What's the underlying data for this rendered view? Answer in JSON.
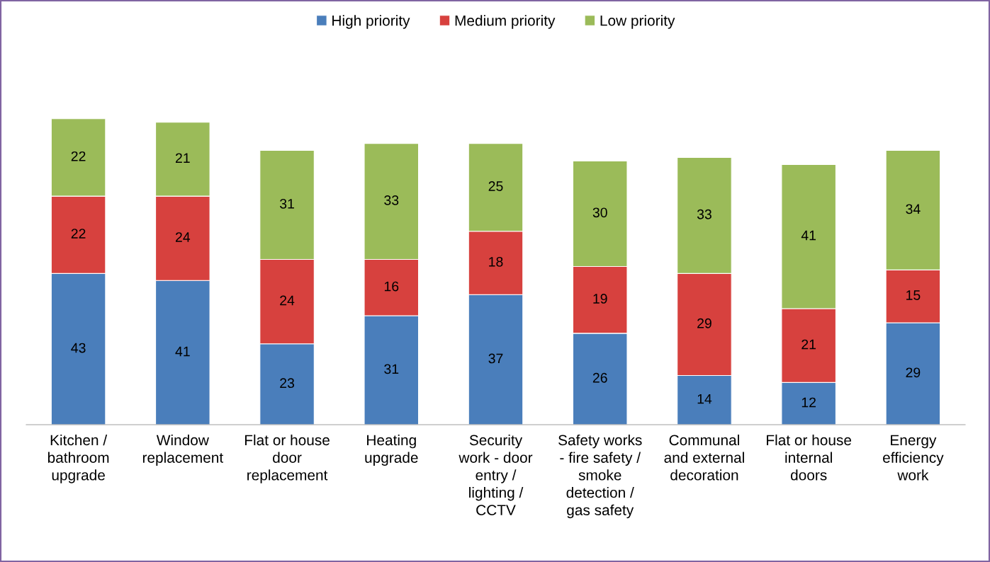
{
  "chart_data": {
    "type": "bar",
    "stacked": true,
    "data_labels": true,
    "legend": "top",
    "grid": false,
    "categories": [
      "Kitchen /\nbathroom\nupgrade",
      "Window\nreplacement",
      "Flat or house\ndoor\nreplacement",
      "Heating\nupgrade",
      "Security\nwork - door\nentry /\nlighting /\nCCTV",
      "Safety works\n- fire safety /\nsmoke\ndetection /\ngas safety",
      "Communal\nand external\ndecoration",
      "Flat or house\ninternal\ndoors",
      "Energy\nefficiency\nwork"
    ],
    "series": [
      {
        "name": "High priority",
        "color": "#4a7ebb",
        "values": [
          43,
          41,
          23,
          31,
          37,
          26,
          14,
          12,
          29
        ]
      },
      {
        "name": "Medium priority",
        "color": "#d7413e",
        "values": [
          22,
          24,
          24,
          16,
          18,
          19,
          29,
          21,
          15
        ]
      },
      {
        "name": "Low priority",
        "color": "#9bbb59",
        "values": [
          22,
          21,
          31,
          33,
          25,
          30,
          33,
          41,
          34
        ]
      }
    ]
  }
}
